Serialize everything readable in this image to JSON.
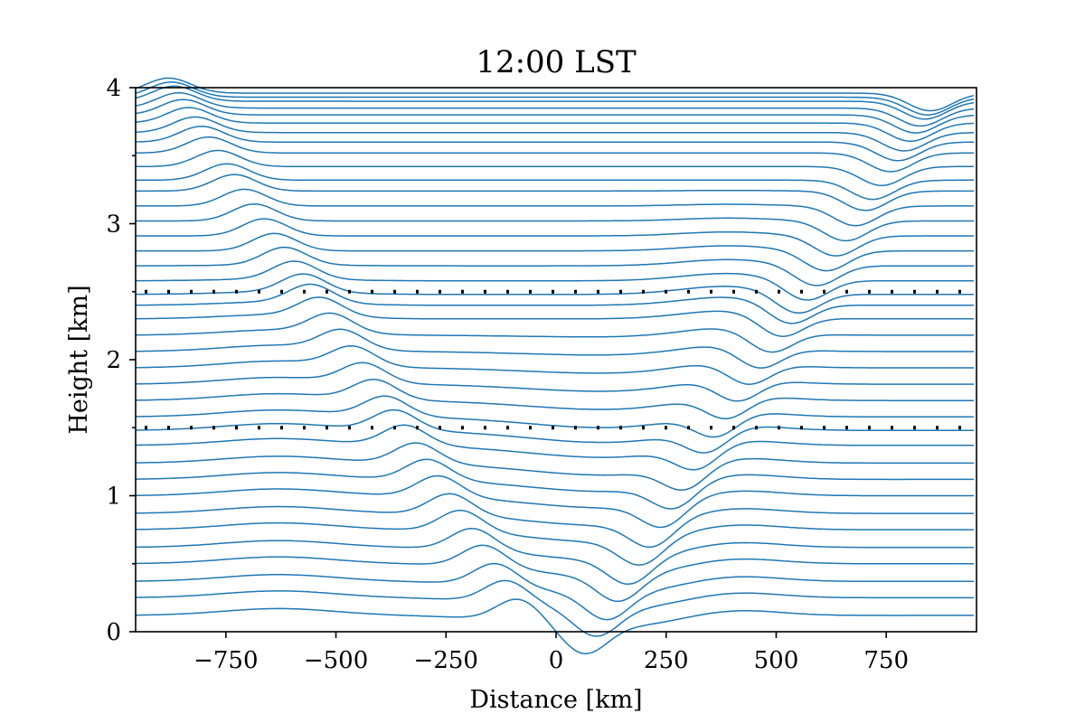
{
  "chart_data": {
    "type": "line",
    "title": "12:00 LST",
    "xlabel": "Distance [km]",
    "ylabel": "Height [km]",
    "xlim": [
      -955,
      955
    ],
    "ylim": [
      0,
      4
    ],
    "xticks": [
      -750,
      -500,
      -250,
      0,
      250,
      500,
      750
    ],
    "xtick_labels": [
      "−750",
      "−500",
      "−250",
      "0",
      "250",
      "500",
      "750"
    ],
    "yticks": [
      0,
      1,
      2,
      3,
      4
    ],
    "ytick_labels": [
      "0",
      "1",
      "2",
      "3",
      "4"
    ],
    "yminor_ticks": [
      0.5,
      1.5,
      2.5,
      3.5
    ],
    "grid": false,
    "legend": "none",
    "line_color": "#1f77b4",
    "reference_color": "#000000",
    "reference_lines": [
      {
        "style": "dotted",
        "y": 1.5
      },
      {
        "style": "dotted",
        "y": 2.5
      }
    ],
    "streamline_count": 39,
    "streamline_base_heights": [
      0.12,
      0.25,
      0.37,
      0.5,
      0.62,
      0.75,
      0.87,
      1.0,
      1.12,
      1.24,
      1.37,
      1.48,
      1.58,
      1.7,
      1.82,
      1.94,
      2.06,
      2.18,
      2.3,
      2.4,
      2.48,
      2.58,
      2.69,
      2.8,
      2.91,
      3.02,
      3.13,
      3.24,
      3.32,
      3.42,
      3.52,
      3.6,
      3.67,
      3.74,
      3.8,
      3.85,
      3.9,
      3.93,
      3.96
    ],
    "wave_features": [
      {
        "kind": "crest",
        "x_at_bottom": -60,
        "x_at_top": -880,
        "amplitude_km": 0.17,
        "width_km": 70
      },
      {
        "kind": "trough",
        "x_at_bottom": 40,
        "x_at_top": 850,
        "amplitude_km": -0.2,
        "width_km": 70
      },
      {
        "kind": "lee_trough",
        "x_center": 120,
        "amplitude_km": -0.09,
        "width_km": 260,
        "top_km": 1.5
      },
      {
        "kind": "broad_bump",
        "x_center": 390,
        "amplitude_km": 0.06,
        "width_km": 150,
        "top_km": 2.5
      },
      {
        "kind": "broad_bump",
        "x_center": -630,
        "amplitude_km": 0.05,
        "width_km": 180,
        "top_km": 2.0
      }
    ]
  }
}
